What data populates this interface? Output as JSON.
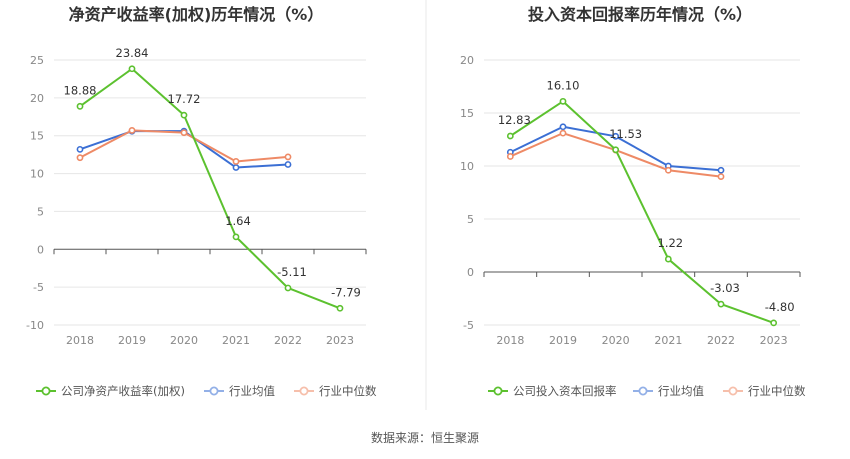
{
  "source": "数据来源：恒生聚源",
  "chart_data": [
    {
      "type": "line",
      "title": "净资产收益率(加权)历年情况（%）",
      "categories": [
        "2018",
        "2019",
        "2020",
        "2021",
        "2022",
        "2023"
      ],
      "ylim": [
        -10,
        25
      ],
      "yticks": [
        "-10",
        "-5",
        "0",
        "5",
        "10",
        "15",
        "20",
        "25"
      ],
      "grid": true,
      "legend_position": "bottom",
      "series": [
        {
          "name": "公司净资产收益率(加权)",
          "color": "#5cc12f",
          "values": [
            18.88,
            23.84,
            17.72,
            1.64,
            -5.11,
            -7.79
          ],
          "labels": [
            "18.88",
            "23.84",
            "17.72",
            "1.64",
            "-5.11",
            "-7.79"
          ]
        },
        {
          "name": "行业均值",
          "color": "#3b6fd4",
          "values": [
            13.2,
            15.6,
            15.6,
            10.8,
            11.2,
            null
          ]
        },
        {
          "name": "行业中位数",
          "color": "#ee8a66",
          "values": [
            12.1,
            15.7,
            15.4,
            11.6,
            12.2,
            null
          ]
        }
      ]
    },
    {
      "type": "line",
      "title": "投入资本回报率历年情况（%）",
      "categories": [
        "2018",
        "2019",
        "2020",
        "2021",
        "2022",
        "2023"
      ],
      "ylim": [
        -5,
        20
      ],
      "yticks": [
        "-5",
        "0",
        "5",
        "10",
        "15",
        "20"
      ],
      "grid": true,
      "legend_position": "bottom",
      "series": [
        {
          "name": "公司投入资本回报率",
          "color": "#5cc12f",
          "values": [
            12.83,
            16.1,
            11.53,
            1.22,
            -3.03,
            -4.8
          ],
          "labels": [
            "12.83",
            "16.10",
            "11.53",
            "1.22",
            "-3.03",
            "-4.80"
          ]
        },
        {
          "name": "行业均值",
          "color": "#3b6fd4",
          "values": [
            11.3,
            13.7,
            12.8,
            10.0,
            9.6,
            null
          ]
        },
        {
          "name": "行业中位数",
          "color": "#ee8a66",
          "values": [
            10.9,
            13.1,
            11.5,
            9.6,
            9.0,
            null
          ]
        }
      ]
    }
  ]
}
